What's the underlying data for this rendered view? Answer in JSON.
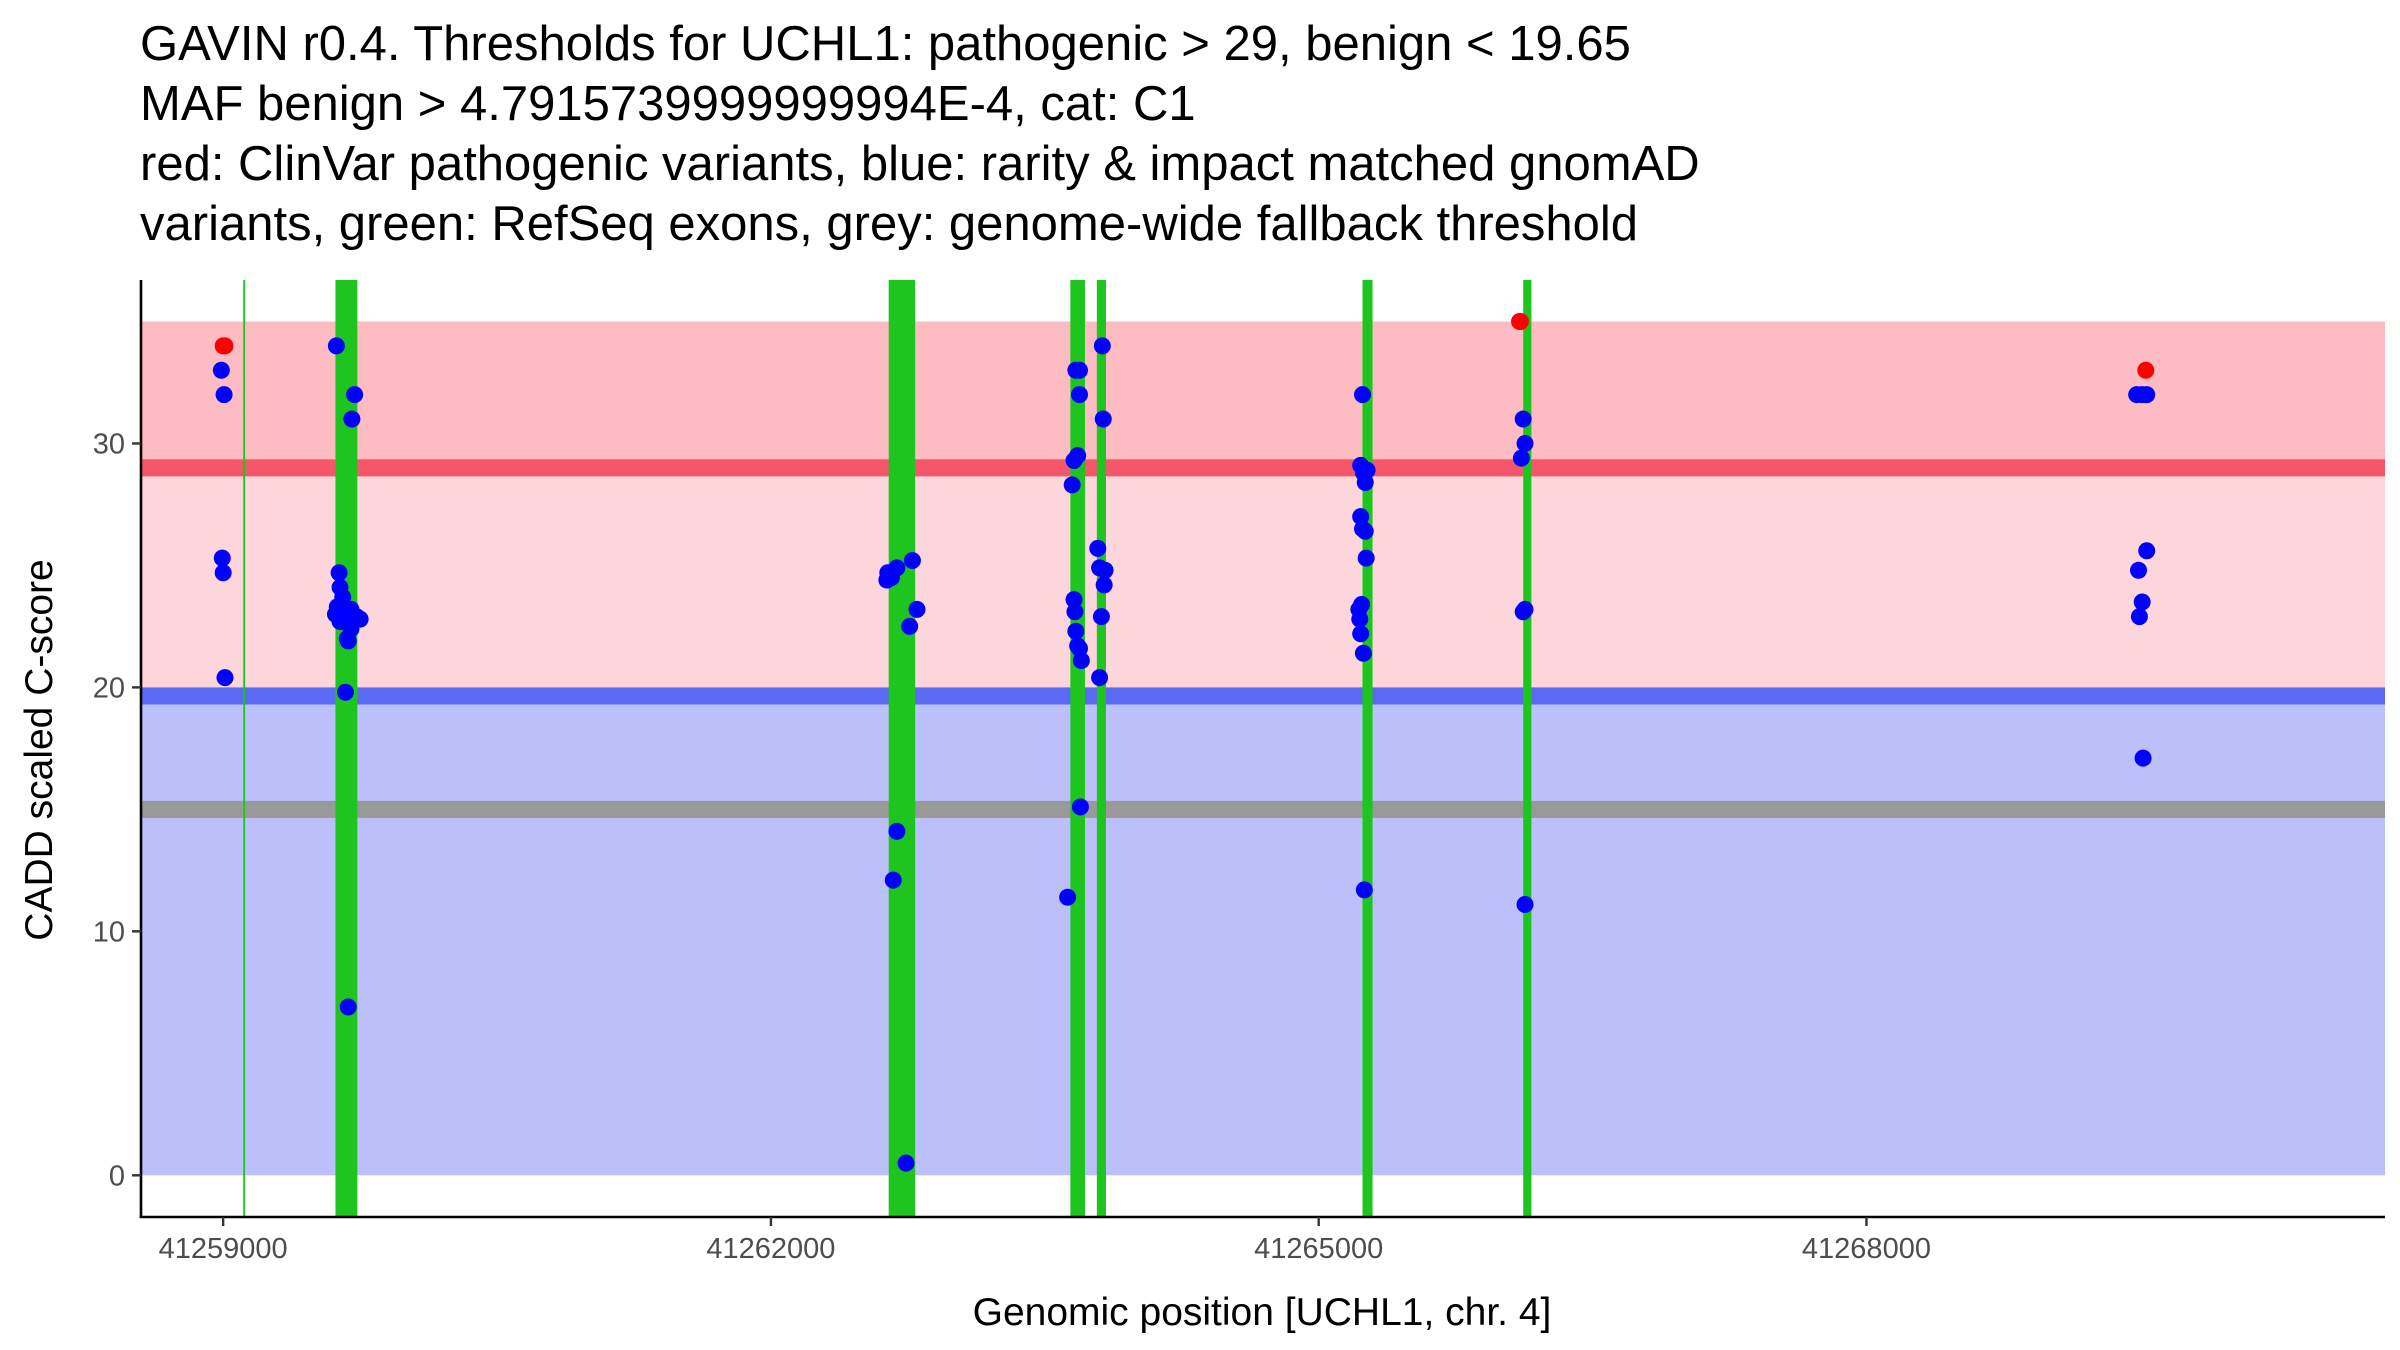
{
  "chart_data": {
    "type": "scatter",
    "title_lines": [
      "GAVIN r0.4. Thresholds for UCHL1: pathogenic > 29, benign < 19.65",
      "MAF benign > 4.7915739999999994E-4, cat: C1",
      "red: ClinVar pathogenic variants, blue: rarity & impact matched gnomAD",
      "variants, green: RefSeq exons, grey: genome-wide fallback threshold"
    ],
    "xlabel": "Genomic position [UCHL1, chr. 4]",
    "ylabel": "CADD scaled C-score",
    "xlim": [
      41258550,
      41270840
    ],
    "ylim": [
      -1.75,
      36.7
    ],
    "x_ticks": [
      41259000,
      41262000,
      41265000,
      41268000
    ],
    "y_ticks": [
      0,
      10,
      20,
      30
    ],
    "thresholds": {
      "pathogenic": 29,
      "benign": 19.65,
      "genome_wide_fallback": 15
    },
    "bands": [
      {
        "name": "pathogenic-zone",
        "from": 29,
        "to": 35,
        "color": "#fdbcc2"
      },
      {
        "name": "vus-zone",
        "from": 19.65,
        "to": 29,
        "color": "#fdd6db"
      },
      {
        "name": "benign-zone",
        "from": 0,
        "to": 19.65,
        "color": "#bbc0fa"
      }
    ],
    "threshold_lines": [
      {
        "name": "pathogenic-threshold-line",
        "y": 29,
        "thickness": 0.7,
        "color": "#f5576a"
      },
      {
        "name": "benign-threshold-line",
        "y": 19.65,
        "thickness": 0.7,
        "color": "#5a6af2"
      },
      {
        "name": "fallback-threshold-line",
        "y": 15,
        "thickness": 0.7,
        "color": "#999999"
      }
    ],
    "exons": [
      {
        "start": 41259110,
        "end": 41259120
      },
      {
        "start": 41259615,
        "end": 41259735
      },
      {
        "start": 41262645,
        "end": 41262790
      },
      {
        "start": 41263640,
        "end": 41263720
      },
      {
        "start": 41263785,
        "end": 41263835
      },
      {
        "start": 41265240,
        "end": 41265295
      },
      {
        "start": 41266120,
        "end": 41266165
      }
    ],
    "exon_color": "#1ec51e",
    "series": [
      {
        "name": "ClinVar pathogenic variants",
        "color": "#ff0000",
        "points": [
          [
            41259000,
            34
          ],
          [
            41259010,
            34
          ],
          [
            41266105,
            35
          ],
          [
            41266100,
            35
          ],
          [
            41269530,
            33
          ]
        ]
      },
      {
        "name": "rarity & impact matched gnomAD variants",
        "color": "#0000ff",
        "points": [
          [
            41258990,
            33
          ],
          [
            41259005,
            32
          ],
          [
            41258995,
            25.3
          ],
          [
            41259000,
            24.7
          ],
          [
            41259010,
            20.4
          ],
          [
            41259620,
            34
          ],
          [
            41259720,
            32
          ],
          [
            41259705,
            31
          ],
          [
            41259635,
            24.7
          ],
          [
            41259640,
            24.1
          ],
          [
            41259655,
            23.7
          ],
          [
            41259625,
            23.3
          ],
          [
            41259700,
            23.2
          ],
          [
            41259615,
            23
          ],
          [
            41259665,
            23
          ],
          [
            41259730,
            22.9
          ],
          [
            41259680,
            22.8
          ],
          [
            41259750,
            22.8
          ],
          [
            41259640,
            22.7
          ],
          [
            41259690,
            22.6
          ],
          [
            41259700,
            22.4
          ],
          [
            41259680,
            22
          ],
          [
            41259685,
            21.9
          ],
          [
            41259670,
            19.8
          ],
          [
            41259685,
            6.9
          ],
          [
            41262640,
            24.7
          ],
          [
            41262660,
            24.5
          ],
          [
            41262635,
            24.4
          ],
          [
            41262690,
            24.9
          ],
          [
            41262775,
            25.2
          ],
          [
            41262800,
            23.2
          ],
          [
            41262760,
            22.5
          ],
          [
            41262690,
            14.1
          ],
          [
            41262670,
            12.1
          ],
          [
            41262740,
            0.5
          ],
          [
            41263670,
            33
          ],
          [
            41263690,
            33
          ],
          [
            41263690,
            32
          ],
          [
            41263680,
            29.5
          ],
          [
            41263660,
            29.3
          ],
          [
            41263650,
            28.3
          ],
          [
            41263660,
            23.6
          ],
          [
            41263665,
            23.1
          ],
          [
            41263670,
            22.3
          ],
          [
            41263680,
            21.7
          ],
          [
            41263690,
            21.6
          ],
          [
            41263700,
            21.1
          ],
          [
            41263695,
            15.1
          ],
          [
            41263625,
            11.4
          ],
          [
            41263815,
            34
          ],
          [
            41263820,
            31
          ],
          [
            41263790,
            25.7
          ],
          [
            41263800,
            24.9
          ],
          [
            41263830,
            24.8
          ],
          [
            41263825,
            24.2
          ],
          [
            41263810,
            22.9
          ],
          [
            41263800,
            20.4
          ],
          [
            41265240,
            32
          ],
          [
            41265230,
            29.1
          ],
          [
            41265245,
            28.8
          ],
          [
            41265265,
            28.9
          ],
          [
            41265255,
            28.4
          ],
          [
            41265230,
            27
          ],
          [
            41265240,
            26.5
          ],
          [
            41265255,
            26.4
          ],
          [
            41265260,
            25.3
          ],
          [
            41265235,
            23.4
          ],
          [
            41265220,
            23.2
          ],
          [
            41265225,
            22.8
          ],
          [
            41265230,
            22.2
          ],
          [
            41265245,
            21.4
          ],
          [
            41265250,
            11.7
          ],
          [
            41266120,
            31
          ],
          [
            41266130,
            30
          ],
          [
            41266110,
            29.4
          ],
          [
            41266120,
            23.1
          ],
          [
            41266130,
            23.2
          ],
          [
            41266130,
            11.1
          ],
          [
            41269480,
            32
          ],
          [
            41269510,
            32
          ],
          [
            41269535,
            32
          ],
          [
            41269535,
            25.6
          ],
          [
            41269490,
            24.8
          ],
          [
            41269510,
            23.5
          ],
          [
            41269495,
            22.9
          ],
          [
            41269515,
            17.1
          ]
        ]
      }
    ]
  }
}
